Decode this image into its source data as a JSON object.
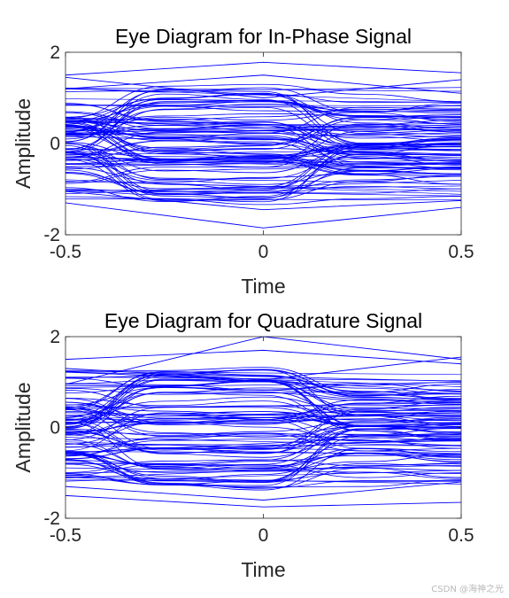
{
  "chart_data": [
    {
      "type": "line",
      "title": "Eye Diagram for In-Phase Signal",
      "xlabel": "Time",
      "ylabel": "Amplitude",
      "xlim": [
        -0.5,
        0.5
      ],
      "ylim": [
        -2,
        2
      ],
      "xticks": [
        -0.5,
        0,
        0.5
      ],
      "xtick_labels": [
        "-0.5",
        "0",
        "0.5"
      ],
      "yticks": [
        -2,
        0,
        2
      ],
      "ytick_labels": [
        "-2",
        "0",
        "2"
      ],
      "grid": false,
      "series_color": "#0000ff",
      "eye_trace_levels": [
        -1.0,
        -0.33,
        0.33,
        1.0
      ],
      "eye_trace_count": 80,
      "outlier_traces": [
        {
          "x": [
            -0.5,
            0,
            0.5
          ],
          "y": [
            1.5,
            1.78,
            1.55
          ]
        },
        {
          "x": [
            -0.5,
            0,
            0.5
          ],
          "y": [
            1.2,
            1.5,
            1.1
          ]
        },
        {
          "x": [
            -0.5,
            0,
            0.5
          ],
          "y": [
            -1.3,
            -1.85,
            -1.4
          ]
        },
        {
          "x": [
            -0.5,
            0,
            0.5
          ],
          "y": [
            -1.05,
            -1.45,
            -1.25
          ]
        },
        {
          "x": [
            -0.5,
            0,
            0.5
          ],
          "y": [
            1.45,
            1.0,
            1.4
          ]
        }
      ]
    },
    {
      "type": "line",
      "title": "Eye Diagram for Quadrature Signal",
      "xlabel": "Time",
      "ylabel": "Amplitude",
      "xlim": [
        -0.5,
        0.5
      ],
      "ylim": [
        -2,
        2
      ],
      "xticks": [
        -0.5,
        0,
        0.5
      ],
      "xtick_labels": [
        "-0.5",
        "0",
        "0.5"
      ],
      "yticks": [
        -2,
        0,
        2
      ],
      "ytick_labels": [
        "-2",
        "0",
        "2"
      ],
      "grid": false,
      "series_color": "#0000ff",
      "eye_trace_levels": [
        -1.0,
        -0.33,
        0.33,
        1.0
      ],
      "eye_trace_count": 80,
      "outlier_traces": [
        {
          "x": [
            -0.5,
            0,
            0.5
          ],
          "y": [
            0.95,
            2.0,
            1.5
          ]
        },
        {
          "x": [
            -0.5,
            0,
            0.5
          ],
          "y": [
            1.5,
            1.7,
            1.4
          ]
        },
        {
          "x": [
            -0.5,
            0,
            0.5
          ],
          "y": [
            -1.5,
            -1.75,
            -1.65
          ]
        },
        {
          "x": [
            -0.5,
            0,
            0.5
          ],
          "y": [
            -1.3,
            -1.6,
            -1.2
          ]
        },
        {
          "x": [
            -0.5,
            0,
            0.5
          ],
          "y": [
            1.3,
            1.05,
            1.55
          ]
        }
      ]
    }
  ],
  "watermark": "CSDN @海神之光"
}
